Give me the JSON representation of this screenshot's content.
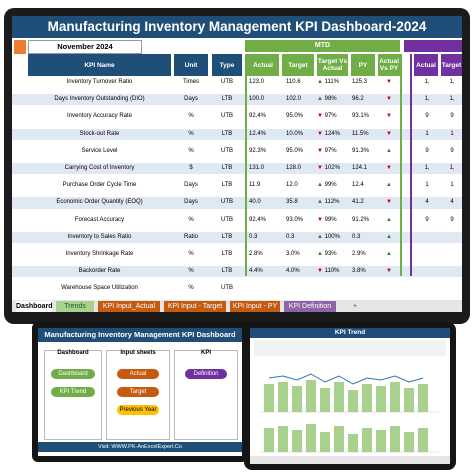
{
  "dashboard": {
    "title": "Manufacturing Inventory Management KPI Dashboard-2024",
    "month": "November 2024",
    "mtd_label": "MTD",
    "columns": {
      "kpi_name": "KPI Name",
      "unit": "Unit",
      "type": "Type",
      "actual": "Actual",
      "target": "Target",
      "target_vs_actual": "Target Vs Actual",
      "py": "PY",
      "target_vs_py": "Actual Vs PY",
      "ytd_actual": "Actual",
      "ytd_target": "Target"
    },
    "rows": [
      {
        "name": "Inventory Turnover Ratio",
        "unit": "Times",
        "type": "UTB",
        "actual": "123.0",
        "target": "110.6",
        "tva": "111%",
        "tva_dir": "up",
        "py": "125.3",
        "tvp_dir": "dn",
        "yact": "1,",
        "ytgt": "1,"
      },
      {
        "name": "Days Inventory Outstanding (DIO)",
        "unit": "Days",
        "type": "LTB",
        "actual": "100.0",
        "target": "102.0",
        "tva": "98%",
        "tva_dir": "up",
        "py": "96.2",
        "tvp_dir": "dn",
        "yact": "1,",
        "ytgt": "1,"
      },
      {
        "name": "Inventory Accuracy Rate",
        "unit": "%",
        "type": "UTB",
        "actual": "92.4%",
        "target": "95.0%",
        "tva": "97%",
        "tva_dir": "dn",
        "py": "93.1%",
        "tvp_dir": "dn",
        "yact": "9",
        "ytgt": "9"
      },
      {
        "name": "Stock-out Rate",
        "unit": "%",
        "type": "LTB",
        "actual": "12.4%",
        "target": "10.0%",
        "tva": "124%",
        "tva_dir": "dn",
        "py": "11.5%",
        "tvp_dir": "dn",
        "yact": "1",
        "ytgt": "1"
      },
      {
        "name": "Service Level",
        "unit": "%",
        "type": "UTB",
        "actual": "92.3%",
        "target": "95.0%",
        "tva": "97%",
        "tva_dir": "dn",
        "py": "91.3%",
        "tvp_dir": "up",
        "yact": "9",
        "ytgt": "9"
      },
      {
        "name": "Carrying Cost of Inventory",
        "unit": "$",
        "type": "LTB",
        "actual": "131.0",
        "target": "128.0",
        "tva": "102%",
        "tva_dir": "dn",
        "py": "124.1",
        "tvp_dir": "dn",
        "yact": "1,",
        "ytgt": "1,"
      },
      {
        "name": "Purchase Order Cycle Time",
        "unit": "Days",
        "type": "LTB",
        "actual": "11.9",
        "target": "12.0",
        "tva": "99%",
        "tva_dir": "up",
        "py": "12.4",
        "tvp_dir": "up",
        "yact": "1",
        "ytgt": "1"
      },
      {
        "name": "Economic Order Quantity (EOQ)",
        "unit": "Days",
        "type": "UTB",
        "actual": "40.0",
        "target": "35.8",
        "tva": "112%",
        "tva_dir": "up",
        "py": "41.2",
        "tvp_dir": "dn",
        "yact": "4",
        "ytgt": "4"
      },
      {
        "name": "Forecast Accuracy",
        "unit": "%",
        "type": "UTB",
        "actual": "92.4%",
        "target": "93.0%",
        "tva": "99%",
        "tva_dir": "dn",
        "py": "91.2%",
        "tvp_dir": "up",
        "yact": "9",
        "ytgt": "9"
      },
      {
        "name": "Inventory to Sales Ratio",
        "unit": "Ratio",
        "type": "LTB",
        "actual": "0.3",
        "target": "0.3",
        "tva": "100%",
        "tva_dir": "up",
        "py": "0.3",
        "tvp_dir": "up",
        "yact": "",
        "ytgt": ""
      },
      {
        "name": "Inventory Shrinkage Rate",
        "unit": "%",
        "type": "LTB",
        "actual": "2.8%",
        "target": "3.0%",
        "tva": "93%",
        "tva_dir": "up",
        "py": "2.9%",
        "tvp_dir": "up",
        "yact": "",
        "ytgt": ""
      },
      {
        "name": "Backorder Rate",
        "unit": "%",
        "type": "LTB",
        "actual": "4.4%",
        "target": "4.0%",
        "tva": "110%",
        "tva_dir": "dn",
        "py": "3.8%",
        "tvp_dir": "dn",
        "yact": "",
        "ytgt": ""
      },
      {
        "name": "Warehouse Space Utilization",
        "unit": "%",
        "type": "UTB",
        "actual": "",
        "target": "",
        "tva": "",
        "tva_dir": "",
        "py": "",
        "tvp_dir": "",
        "yact": "",
        "ytgt": ""
      }
    ],
    "tabs": [
      "Dashboard",
      "Trends",
      "KPI Input_Actual",
      "KPI Input - Target",
      "KPI Input - PY",
      "KPI Definition",
      "+"
    ]
  },
  "laptop": {
    "title": "Manufacturing Inventory Management KPI Dashboard",
    "panels": {
      "dashboard": "Dashboard",
      "input": "Input sheets",
      "kpi": "KPI"
    },
    "buttons": {
      "dashboard": "Dashboard",
      "kpi_trend": "KPI Trend",
      "actual": "Actual",
      "target": "Target",
      "previous_year": "Previous Year",
      "definition": "Definition"
    },
    "footer": "Visit: WWW.PK-AnExcelExpert.Co"
  },
  "tablet": {
    "title": "KPI Trend"
  },
  "colors": {
    "navy": "#1f4e79",
    "green": "#70ad47",
    "purple": "#7030a0",
    "orange": "#c55a11"
  }
}
